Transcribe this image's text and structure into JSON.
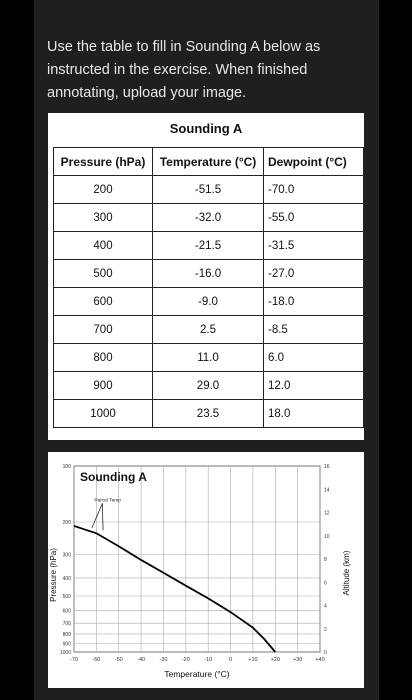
{
  "instructions": "Use the table to fill in Sounding A below as instructed in the exercise. When finished annotating, upload your image.",
  "table": {
    "title": "Sounding A",
    "headers": [
      "Pressure (hPa)",
      "Temperature (°C)",
      "Dewpoint (°C)"
    ],
    "rows": [
      [
        "200",
        "-51.5",
        "-70.0"
      ],
      [
        "300",
        "-32.0",
        "-55.0"
      ],
      [
        "400",
        "-21.5",
        "-31.5"
      ],
      [
        "500",
        "-16.0",
        "-27.0"
      ],
      [
        "600",
        "-9.0",
        "-18.0"
      ],
      [
        "700",
        "2.5",
        "-8.5"
      ],
      [
        "800",
        "11.0",
        "6.0"
      ],
      [
        "900",
        "29.0",
        "12.0"
      ],
      [
        "1000",
        "23.5",
        "18.0"
      ]
    ]
  },
  "chart_data": {
    "type": "line",
    "title": "Sounding A",
    "xlabel": "Temperature (°C)",
    "ylabel": "Pressure (hPa)",
    "y2label": "Altitude (km)",
    "xlim": [
      -70,
      40
    ],
    "x_ticks": [
      "-70",
      "-60",
      "-50",
      "-40",
      "-30",
      "-20",
      "-10",
      "0",
      "+10",
      "+20",
      "+30",
      "+40"
    ],
    "y_ticks": [
      "100",
      "200",
      "300",
      "400",
      "500",
      "600",
      "700",
      "800",
      "900",
      "1000"
    ],
    "y2_ticks": [
      "0",
      "2",
      "4",
      "6",
      "8",
      "10",
      "12",
      "14",
      "16"
    ],
    "annotation": "Parcel Temp",
    "series": [
      {
        "name": "Parcel Temp",
        "x": [
          -70,
          -60,
          -50,
          -40,
          -30,
          -20,
          -10,
          0,
          10,
          15,
          20
        ],
        "y": [
          210,
          230,
          270,
          320,
          375,
          440,
          515,
          610,
          740,
          850,
          1000
        ]
      }
    ]
  }
}
